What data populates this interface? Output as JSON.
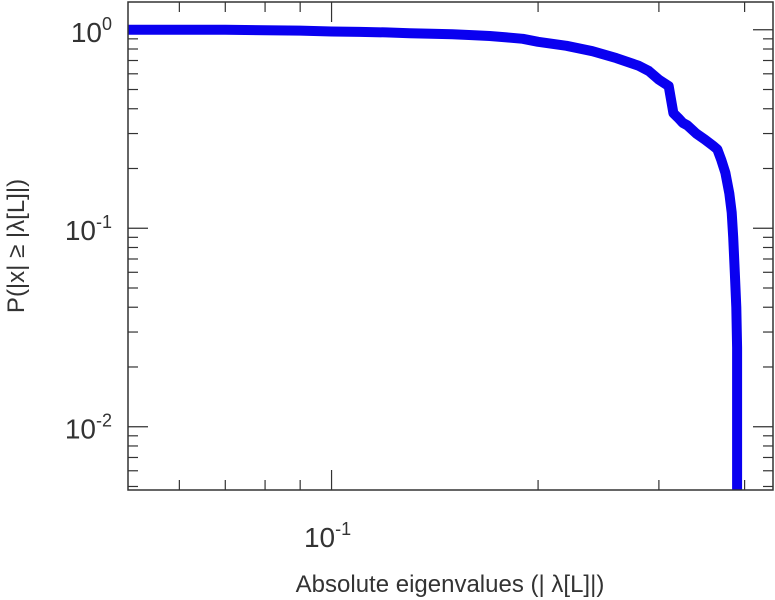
{
  "chart_data": {
    "type": "line",
    "title": "",
    "xlabel": "Absolute eigenvalues (|     λ[L]|)",
    "ylabel": "P(|x|  ≥ |λ[L]|)",
    "x_scale": "log",
    "y_scale": "log",
    "xlim": [
      0.0505,
      0.44
    ],
    "ylim": [
      0.0048,
      1.38
    ],
    "grid": false,
    "legend": "none",
    "x_ticks": [
      {
        "value": 0.1,
        "base": "10",
        "exp": "-1"
      }
    ],
    "y_ticks": [
      {
        "value": 1,
        "base": "10",
        "exp": "0"
      },
      {
        "value": 0.1,
        "base": "10",
        "exp": "-1"
      },
      {
        "value": 0.01,
        "base": "10",
        "exp": "-2"
      }
    ],
    "series": [
      {
        "color": "#0a00f0",
        "x": [
          0.0505,
          0.06,
          0.07,
          0.08,
          0.09,
          0.1,
          0.11,
          0.12,
          0.13,
          0.14,
          0.15,
          0.16,
          0.17,
          0.18,
          0.19,
          0.2,
          0.22,
          0.24,
          0.26,
          0.28,
          0.29,
          0.3,
          0.31,
          0.315,
          0.32,
          0.325,
          0.33,
          0.34,
          0.35,
          0.36,
          0.365,
          0.37,
          0.375,
          0.38,
          0.383,
          0.385,
          0.387,
          0.389,
          0.39,
          0.39,
          0.39
        ],
        "y": [
          1.0,
          1.0,
          1.0,
          0.995,
          0.99,
          0.98,
          0.975,
          0.97,
          0.96,
          0.955,
          0.95,
          0.94,
          0.93,
          0.915,
          0.9,
          0.87,
          0.83,
          0.78,
          0.72,
          0.66,
          0.62,
          0.56,
          0.52,
          0.38,
          0.36,
          0.34,
          0.33,
          0.3,
          0.28,
          0.26,
          0.25,
          0.22,
          0.19,
          0.15,
          0.12,
          0.09,
          0.06,
          0.04,
          0.025,
          0.012,
          0.0048
        ]
      }
    ]
  }
}
